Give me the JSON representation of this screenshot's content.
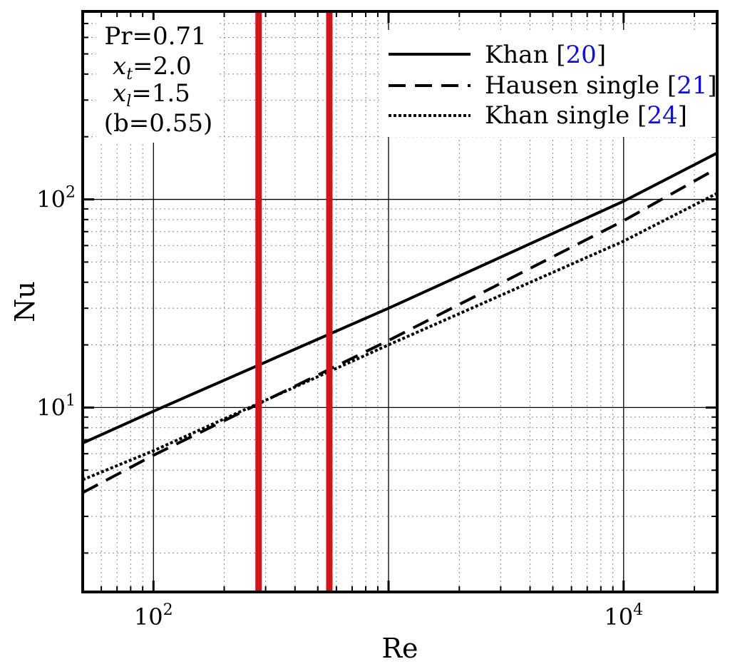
{
  "chart_data": {
    "type": "line",
    "x_scale": "log",
    "y_scale": "log",
    "xlim": [
      50,
      25000
    ],
    "ylim": [
      1.3,
      800
    ],
    "xlabel": "Re",
    "ylabel": "Nu",
    "x_major_ticks": [
      {
        "value": 100,
        "base": "10",
        "exp": "2"
      },
      {
        "value": 10000,
        "base": "10",
        "exp": "4"
      }
    ],
    "y_major_ticks": [
      {
        "value": 10,
        "base": "10",
        "exp": "1"
      },
      {
        "value": 100,
        "base": "10",
        "exp": "2"
      }
    ],
    "grid": true,
    "annotations": {
      "pr": "Pr=0.71",
      "xt_sym": "x",
      "xt_sub": "t",
      "xt_val": "=2.0",
      "xl_sym": "x",
      "xl_sub": "l",
      "xl_val": "=1.5",
      "b": "(b=0.55)"
    },
    "series": [
      {
        "name": "Khan [20]",
        "label": "Khan [",
        "ref": "20",
        "style": "solid",
        "points": [
          [
            50,
            6.75
          ],
          [
            100,
            9.6
          ],
          [
            1000,
            30.0
          ],
          [
            10000,
            98.0
          ],
          [
            25000,
            167.0
          ]
        ]
      },
      {
        "name": "Hausen single [21]",
        "label": "Hausen single [",
        "ref": "21",
        "style": "dashed",
        "points": [
          [
            50,
            3.9
          ],
          [
            100,
            5.9
          ],
          [
            1000,
            21.0
          ],
          [
            10000,
            79.0
          ],
          [
            25000,
            141.0
          ]
        ]
      },
      {
        "name": "Khan single [24]",
        "label": "Khan single [",
        "ref": "24",
        "style": "dotted",
        "points": [
          [
            50,
            4.5
          ],
          [
            100,
            6.2
          ],
          [
            1000,
            20.0
          ],
          [
            10000,
            63.0
          ],
          [
            25000,
            107.0
          ]
        ]
      }
    ],
    "vertical_lines": [
      {
        "x": 280,
        "color": "#d0161a"
      },
      {
        "x": 560,
        "color": "#d0161a"
      }
    ],
    "legend_position": "top-right",
    "colors": {
      "reference": "#1010d8",
      "axis": "#000000"
    }
  }
}
